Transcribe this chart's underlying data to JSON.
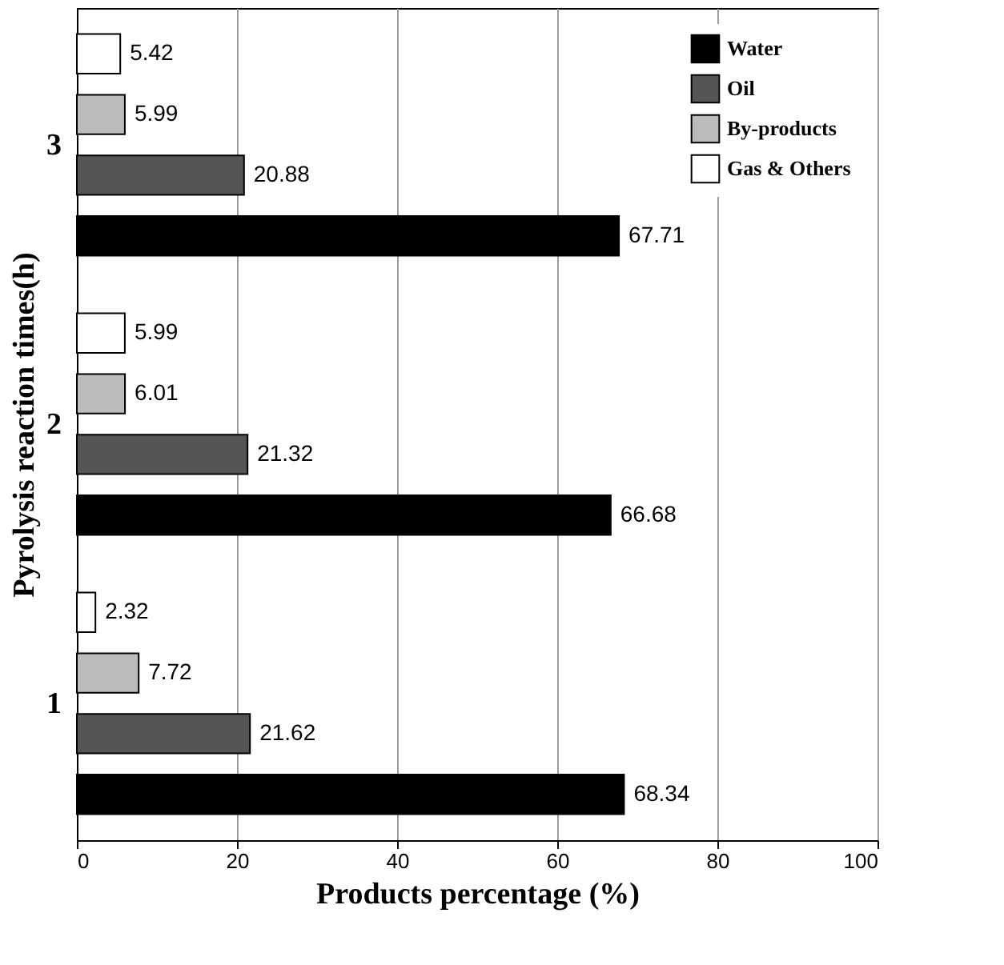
{
  "chart_data": {
    "type": "bar",
    "orientation": "horizontal",
    "xlabel": "Products percentage (%)",
    "ylabel": "Pyrolysis reaction times(h)",
    "categories": [
      "3",
      "2",
      "1"
    ],
    "series": [
      {
        "name": "Water",
        "color": "#000000",
        "values": [
          67.71,
          66.68,
          68.34
        ]
      },
      {
        "name": "Oil",
        "color": "#555555",
        "values": [
          20.88,
          21.32,
          21.62
        ]
      },
      {
        "name": "By-products",
        "color": "#bbbbbb",
        "values": [
          5.99,
          6.01,
          7.72
        ]
      },
      {
        "name": "Gas & Others",
        "color": "#ffffff",
        "values": [
          5.42,
          5.99,
          2.32
        ]
      }
    ],
    "xlim": [
      0,
      100
    ],
    "xticks": [
      0,
      20,
      40,
      60,
      80,
      100
    ],
    "grid": "x",
    "legend": "top right",
    "data_labels": true
  }
}
